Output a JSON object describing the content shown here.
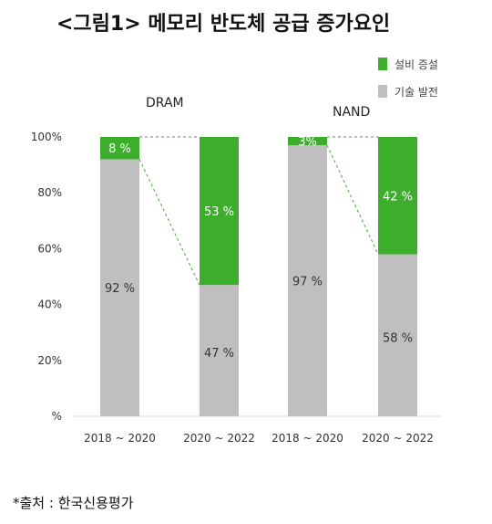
{
  "title": "<그림1> 메모리 반도체 공급 증가요인",
  "source": "*출처 : 한국신용평가",
  "legend": [
    {
      "label": "설비 증설",
      "color": "#3cae2c"
    },
    {
      "label": "기술 발전",
      "color": "#bfbfbf"
    }
  ],
  "chart_data": {
    "type": "bar",
    "stacked": true,
    "groups": [
      "DRAM",
      "NAND"
    ],
    "categories": [
      "2018 ~ 2020",
      "2020 ~ 2022",
      "2018 ~ 2020",
      "2020 ~ 2022"
    ],
    "category_group": [
      0,
      0,
      1,
      1
    ],
    "series": [
      {
        "name": "기술 발전",
        "color": "#bfbfbf",
        "values": [
          92,
          47,
          97,
          58
        ],
        "labels": [
          "92 %",
          "47 %",
          "97 %",
          "58 %"
        ]
      },
      {
        "name": "설비 증설",
        "color": "#3cae2c",
        "values": [
          8,
          53,
          3,
          42
        ],
        "labels": [
          "8 %",
          "53 %",
          "3%",
          "42 %"
        ]
      }
    ],
    "yticks": [
      "%",
      "20%",
      "40%",
      "60%",
      "80%",
      "100%"
    ],
    "ylim": [
      0,
      100
    ],
    "connectors": true,
    "grid": false,
    "legend_position": "top-right"
  }
}
